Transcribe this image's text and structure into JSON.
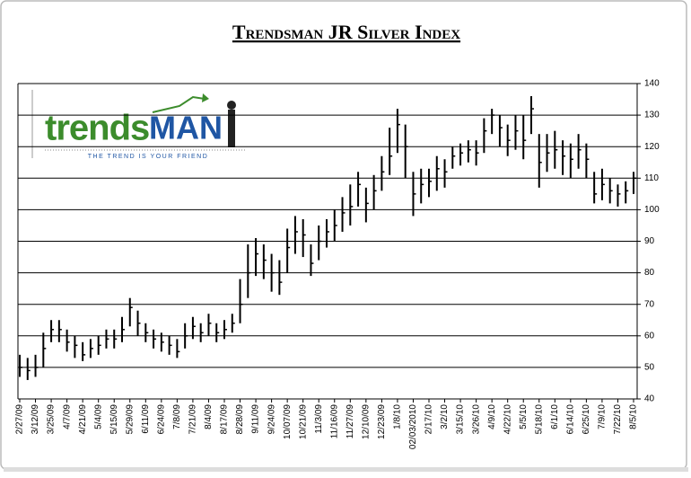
{
  "chart_data": {
    "type": "ohlc",
    "title": "Trendsman JR Silver Index",
    "logo": {
      "brand_left": "trends",
      "brand_right": "MAN",
      "tagline": "THE TREND IS YOUR FRIEND"
    },
    "categories": [
      "2/27/09",
      null,
      "3/12/09",
      null,
      "3/25/09",
      null,
      "4/7/09",
      null,
      "4/21/09",
      null,
      "5/4/09",
      null,
      "5/15/09",
      null,
      "5/29/09",
      null,
      "6/11/09",
      null,
      "6/24/09",
      null,
      "7/8/09",
      null,
      "7/21/09",
      null,
      "8/4/09",
      null,
      "8/17/09",
      null,
      "8/28/09",
      null,
      "9/11/09",
      null,
      "9/24/09",
      null,
      "10/07/09",
      null,
      "10/21/09",
      null,
      "11/3/09",
      null,
      "11/16/09",
      null,
      "11/27/09",
      null,
      "12/10/09",
      null,
      "12/23/09",
      null,
      "1/8/10",
      null,
      "02/03/2010",
      null,
      "2/17/10",
      null,
      "3/2/10",
      null,
      "3/15/10",
      null,
      "3/26/10",
      null,
      "4/9/10",
      null,
      "4/22/10",
      null,
      "5/5/10",
      null,
      "5/18/10",
      null,
      "6/1/10",
      null,
      "6/14/10",
      null,
      "6/25/10",
      null,
      "7/9/10",
      null,
      "7/22/10",
      null,
      "8/5/10"
    ],
    "high": [
      54,
      53,
      54,
      61,
      65,
      65,
      62,
      60,
      58,
      59,
      60,
      62,
      62,
      66,
      72,
      68,
      64,
      62,
      61,
      60,
      59,
      64,
      66,
      64,
      67,
      64,
      65,
      67,
      78,
      89,
      91,
      89,
      86,
      84,
      94,
      98,
      97,
      89,
      95,
      97,
      100,
      104,
      108,
      112,
      107,
      111,
      117,
      126,
      132,
      127,
      112,
      113,
      113,
      117,
      116,
      120,
      121,
      122,
      122,
      129,
      132,
      130,
      127,
      130,
      130,
      136,
      124,
      124,
      125,
      122,
      121,
      124,
      121,
      112,
      113,
      110,
      108,
      109,
      112
    ],
    "low": [
      47,
      46,
      47,
      50,
      58,
      58,
      55,
      53,
      52,
      53,
      54,
      56,
      56,
      58,
      63,
      60,
      58,
      56,
      55,
      54,
      53,
      56,
      59,
      58,
      60,
      58,
      59,
      61,
      64,
      72,
      79,
      78,
      74,
      73,
      80,
      86,
      85,
      79,
      84,
      88,
      90,
      93,
      95,
      101,
      96,
      100,
      106,
      111,
      118,
      110,
      98,
      102,
      104,
      106,
      107,
      113,
      114,
      115,
      114,
      118,
      124,
      120,
      117,
      119,
      116,
      124,
      107,
      112,
      113,
      111,
      110,
      113,
      110,
      102,
      103,
      102,
      101,
      102,
      105
    ],
    "close": [
      50,
      49,
      50,
      56,
      62,
      62,
      58,
      57,
      54,
      56,
      57,
      59,
      59,
      62,
      69,
      64,
      61,
      59,
      58,
      57,
      55,
      60,
      63,
      61,
      64,
      61,
      62,
      64,
      70,
      80,
      86,
      84,
      80,
      77,
      88,
      93,
      92,
      83,
      90,
      93,
      95,
      99,
      101,
      108,
      102,
      106,
      112,
      117,
      127,
      120,
      105,
      108,
      109,
      113,
      112,
      117,
      118,
      119,
      118,
      125,
      130,
      126,
      122,
      125,
      122,
      132,
      115,
      118,
      119,
      117,
      116,
      119,
      116,
      105,
      108,
      106,
      105,
      106,
      110
    ],
    "color": "#000000",
    "ylim": [
      40,
      140
    ],
    "yticks": [
      40,
      50,
      60,
      70,
      80,
      90,
      100,
      110,
      120,
      130,
      140
    ],
    "grid": true,
    "y_axis_side": "right"
  }
}
